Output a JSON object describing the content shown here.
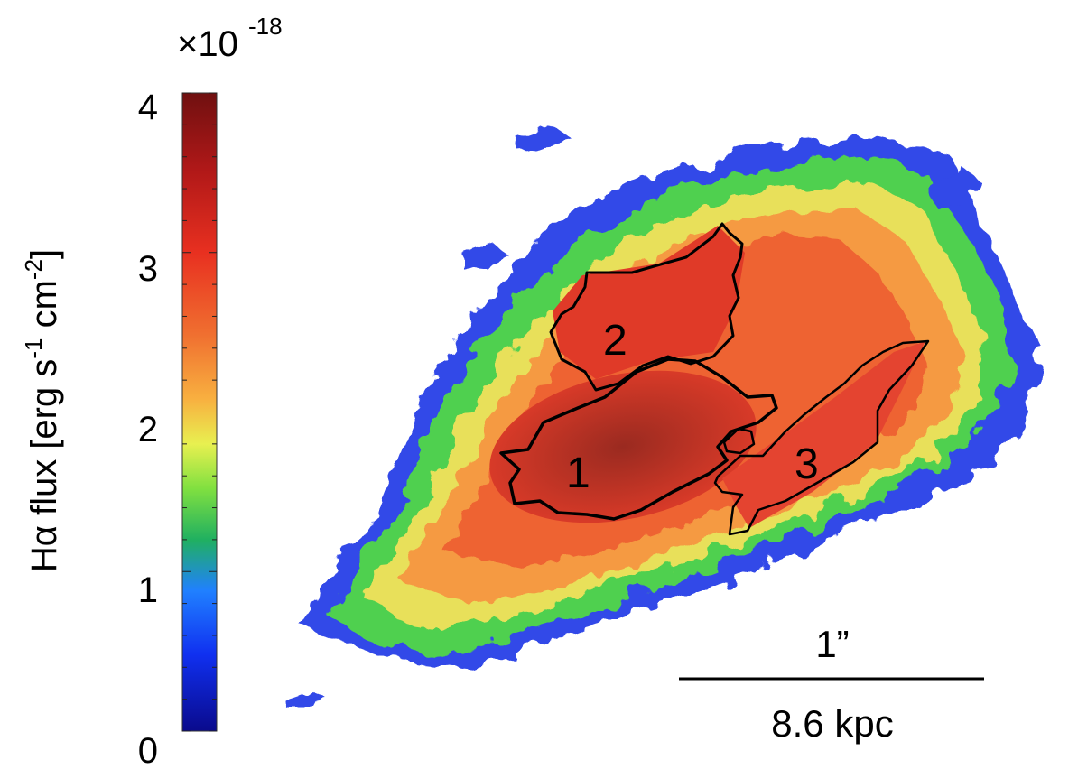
{
  "colorbar": {
    "exponent_prefix": "×10",
    "exponent": "-18",
    "ticks": [
      "0",
      "1",
      "2",
      "3",
      "4"
    ],
    "range": [
      0,
      4
    ],
    "label_main": "Hα  flux [erg s",
    "label_sup1": "-1",
    "label_mid": " cm",
    "label_sup2": "-2",
    "label_end": "]",
    "colors": [
      "#0a0a8c",
      "#1030f0",
      "#2080ff",
      "#20c060",
      "#80e040",
      "#e8f050",
      "#f8b040",
      "#f07030",
      "#e83020",
      "#b01818",
      "#781010"
    ]
  },
  "regions": {
    "labels": [
      "1",
      "2",
      "3"
    ]
  },
  "scale_bar": {
    "angular": "1”",
    "physical": "8.6 kpc"
  }
}
